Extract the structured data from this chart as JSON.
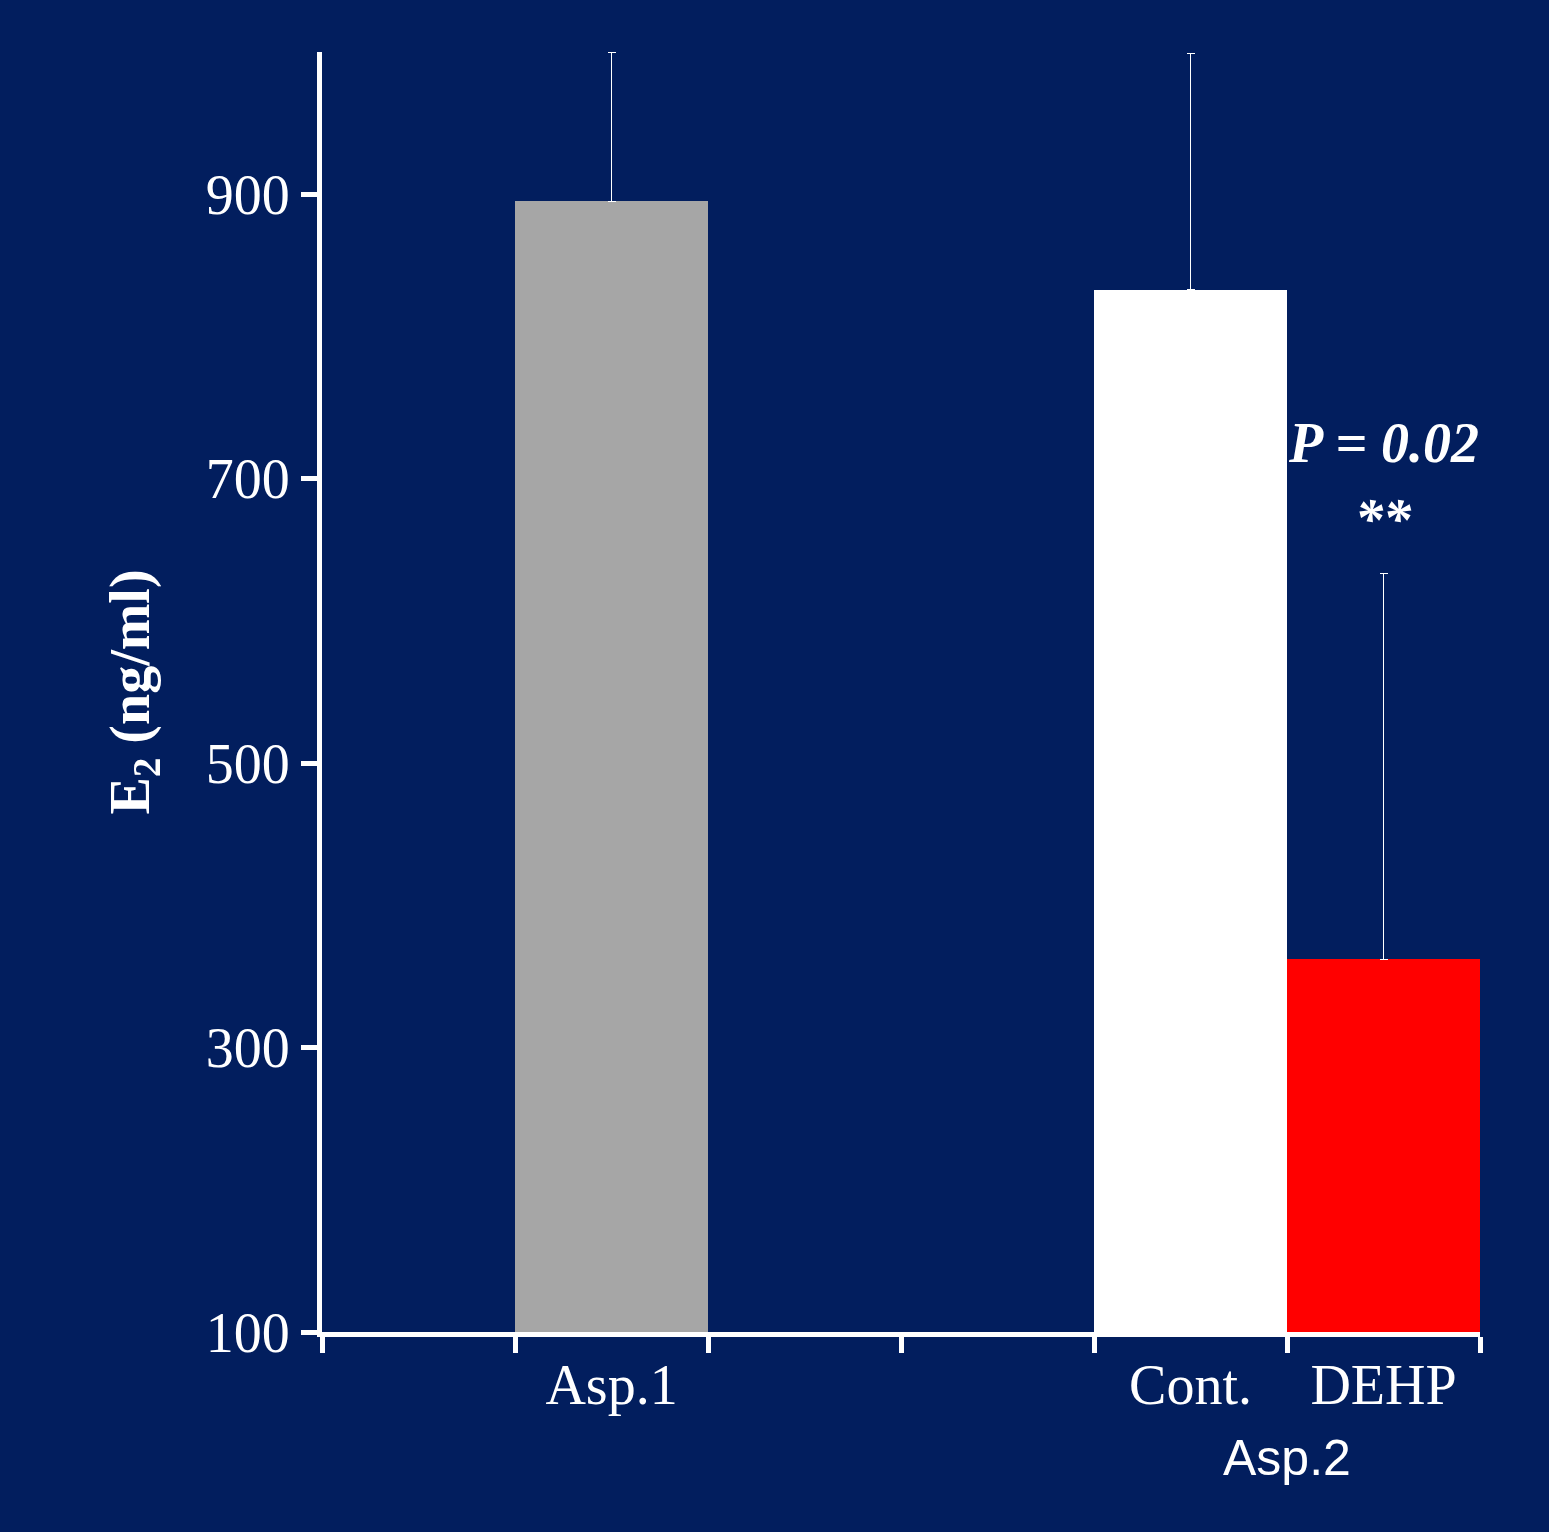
{
  "chart_data": {
    "type": "bar",
    "ylabel": "E$_{2}$ (ng/ml)",
    "categories": [
      null,
      "Asp.1",
      null,
      null,
      "Cont.",
      "DEHP"
    ],
    "values": [
      null,
      895,
      null,
      null,
      833,
      362
    ],
    "colors": [
      "#a6a6a6",
      "#a6a6a6",
      "#ffffff",
      "#ffffff",
      "#ffffff",
      "#ff0000"
    ],
    "errors": [
      null,
      [
        895,
        1000
      ],
      null,
      null,
      [
        833,
        999
      ],
      [
        362,
        633
      ]
    ],
    "ylim": [
      100,
      1000
    ],
    "yticks": [
      100,
      300,
      500,
      700,
      900
    ],
    "grid": false,
    "legend": false,
    "annotations": [
      "Asp.2",
      "P = 0.02",
      "**"
    ]
  }
}
